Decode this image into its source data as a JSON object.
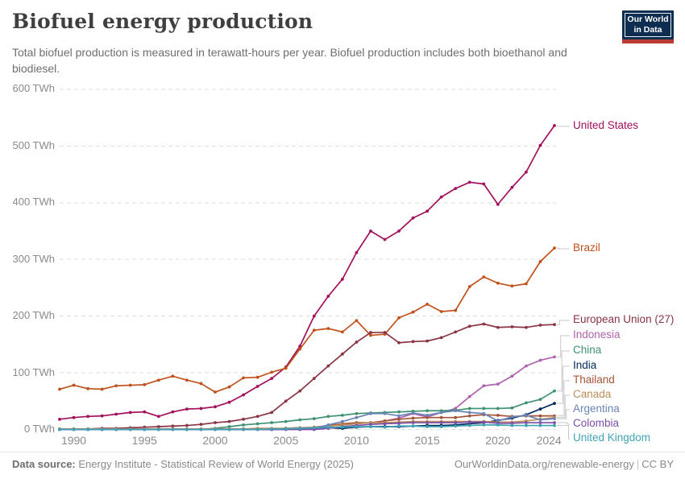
{
  "header": {
    "title": "Biofuel energy production",
    "subtitle": "Total biofuel production is measured in terawatt-hours per year. Biofuel production includes both bioethanol and biodiesel.",
    "logo": {
      "line1": "Our World",
      "line2": "in Data"
    }
  },
  "footer": {
    "datasource_label": "Data source:",
    "datasource_value": "Energy Institute - Statistical Review of World Energy (2025)",
    "link": "OurWorldinData.org/renewable-energy",
    "separator": "|",
    "license": "CC BY"
  },
  "colors": {
    "gridline": "#dedede",
    "axis_text": "#8b8b8b",
    "connector": "#c9c9c9"
  },
  "chart_data": {
    "type": "line",
    "title": "Biofuel energy production",
    "unit": "TWh",
    "ylabel": "",
    "xlabel": "",
    "ylim": [
      0,
      600
    ],
    "grid": "dashed-horizontal",
    "legend_position": "right-of-lines",
    "y_ticks": [
      0,
      100,
      200,
      300,
      400,
      500,
      600
    ],
    "y_tick_suffix": " TWh",
    "x_ticks": [
      1990,
      1995,
      2000,
      2005,
      2010,
      2015,
      2020,
      2024
    ],
    "x": [
      1989,
      1990,
      1991,
      1992,
      1993,
      1994,
      1995,
      1996,
      1997,
      1998,
      1999,
      2000,
      2001,
      2002,
      2003,
      2004,
      2005,
      2006,
      2007,
      2008,
      2009,
      2010,
      2011,
      2012,
      2013,
      2014,
      2015,
      2016,
      2017,
      2018,
      2019,
      2020,
      2021,
      2022,
      2023,
      2024
    ],
    "series": [
      {
        "name": "United States",
        "color": "#a2105c",
        "label_y": 157,
        "values": [
          18,
          21,
          23,
          24,
          27,
          30,
          31,
          23,
          31,
          36,
          37,
          40,
          48,
          61,
          76,
          90,
          110,
          147,
          200,
          235,
          265,
          312,
          350,
          335,
          350,
          373,
          385,
          410,
          425,
          436,
          433,
          397,
          427,
          454,
          501,
          536
        ]
      },
      {
        "name": "Brazil",
        "color": "#c0511c",
        "label_y": 309,
        "values": [
          71,
          78,
          72,
          71,
          77,
          78,
          79,
          87,
          94,
          87,
          81,
          66,
          75,
          91,
          92,
          101,
          108,
          142,
          175,
          178,
          172,
          192,
          166,
          168,
          197,
          207,
          221,
          208,
          210,
          252,
          269,
          258,
          253,
          257,
          296,
          320
        ]
      },
      {
        "name": "European Union (27)",
        "color": "#8a3444",
        "label_y": 398,
        "values": [
          1,
          1,
          1,
          2,
          2,
          3,
          4,
          5,
          6,
          7,
          9,
          12,
          14,
          18,
          23,
          30,
          50,
          68,
          90,
          112,
          133,
          154,
          171,
          171,
          153,
          155,
          156,
          162,
          172,
          182,
          186,
          180,
          181,
          180,
          184,
          185
        ]
      },
      {
        "name": "Indonesia",
        "color": "#af63ae",
        "label_y": 417,
        "values": [
          0,
          0,
          0,
          0,
          0,
          0,
          0,
          0,
          0,
          0,
          0,
          0,
          0,
          0,
          0,
          0,
          1,
          1,
          3,
          6,
          8,
          10,
          12,
          15,
          20,
          28,
          22,
          30,
          37,
          58,
          77,
          80,
          94,
          112,
          122,
          128
        ]
      },
      {
        "name": "China",
        "color": "#3f9171",
        "label_y": 436,
        "values": [
          0,
          0,
          0,
          0,
          0,
          0,
          0,
          0,
          0,
          0,
          0,
          2,
          5,
          8,
          10,
          12,
          14,
          17,
          19,
          23,
          25,
          28,
          29,
          30,
          31,
          32,
          33,
          33,
          34,
          37,
          37,
          37,
          38,
          47,
          53,
          68
        ]
      },
      {
        "name": "India",
        "color": "#00295b",
        "label_y": 455,
        "values": [
          0,
          0,
          0,
          0,
          0,
          0,
          0,
          0,
          0,
          0,
          0,
          0,
          0,
          1,
          1,
          1,
          2,
          3,
          3,
          3,
          2,
          4,
          5,
          5,
          5,
          6,
          7,
          7,
          8,
          10,
          12,
          16,
          20,
          26,
          36,
          46
        ]
      },
      {
        "name": "Thailand",
        "color": "#a65437",
        "label_y": 473,
        "values": [
          0,
          0,
          0,
          0,
          0,
          0,
          0,
          0,
          0,
          0,
          0,
          0,
          0,
          0,
          0,
          0,
          1,
          2,
          4,
          7,
          10,
          12,
          12,
          15,
          18,
          20,
          21,
          21,
          21,
          24,
          26,
          25,
          23,
          24,
          24,
          24
        ]
      },
      {
        "name": "Canada",
        "color": "#bc8e5a",
        "label_y": 491,
        "values": [
          1,
          1,
          1,
          1,
          1,
          1,
          1,
          1,
          1,
          1,
          1,
          1,
          1,
          1,
          2,
          2,
          2,
          3,
          4,
          6,
          8,
          10,
          12,
          12,
          13,
          14,
          14,
          14,
          14,
          14,
          14,
          13,
          13,
          15,
          18,
          21
        ]
      },
      {
        "name": "Argentina",
        "color": "#6a84b8",
        "label_y": 509,
        "values": [
          0,
          0,
          0,
          0,
          0,
          0,
          0,
          0,
          0,
          0,
          0,
          0,
          0,
          0,
          0,
          0,
          0,
          0,
          2,
          8,
          14,
          21,
          28,
          28,
          24,
          29,
          25,
          30,
          33,
          30,
          28,
          15,
          22,
          25,
          17,
          19
        ]
      },
      {
        "name": "Colombia",
        "color": "#7c4fa8",
        "label_y": 527,
        "values": [
          0,
          0,
          0,
          0,
          0,
          0,
          0,
          0,
          0,
          0,
          0,
          0,
          0,
          0,
          0,
          0,
          0,
          0,
          0,
          2,
          5,
          7,
          9,
          10,
          11,
          12,
          12,
          12,
          12,
          13,
          13,
          11,
          11,
          12,
          12,
          12
        ]
      },
      {
        "name": "United Kingdom",
        "color": "#3fa3b5",
        "label_y": 545,
        "values": [
          0,
          0,
          0,
          0,
          0,
          0,
          0,
          0,
          0,
          0,
          0,
          0,
          0,
          0,
          0,
          1,
          1,
          2,
          3,
          4,
          4,
          5,
          5,
          4,
          6,
          6,
          5,
          5,
          6,
          7,
          8,
          8,
          7,
          7,
          7,
          7
        ]
      }
    ]
  }
}
